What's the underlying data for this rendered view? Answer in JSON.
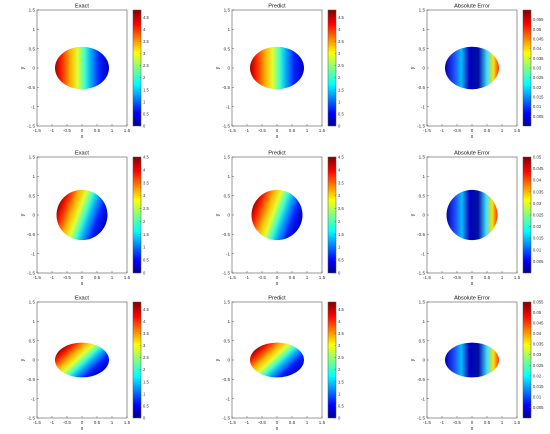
{
  "figure": {
    "colormap": "jet",
    "colors": {
      "background": "#ffffff",
      "axis": "#555555"
    }
  },
  "chart_data": [
    {
      "type": "heatmap",
      "title": "Exact",
      "shape": "ellipse",
      "semi_axes": [
        0.9,
        0.55
      ],
      "xlabel": "x",
      "ylabel": "y",
      "xlim": [
        -1.5,
        1.5
      ],
      "ylim": [
        -1.5,
        1.5
      ],
      "xticks": [
        "-1.5",
        "-1",
        "-0.5",
        "0",
        "0.5",
        "1",
        "1.5"
      ],
      "yticks": [
        "-1.5",
        "-1",
        "-0.5",
        "0",
        "0.5",
        "1",
        "1.5"
      ],
      "grid": false,
      "field": "gradient",
      "direction_angle_deg": 0,
      "clim": [
        0,
        4.8
      ],
      "colorbar_ticks": [
        "0",
        "0.5",
        "1",
        "1.5",
        "2",
        "2.5",
        "3",
        "3.5",
        "4",
        "4.5"
      ]
    },
    {
      "type": "heatmap",
      "title": "Predict",
      "shape": "ellipse",
      "semi_axes": [
        0.9,
        0.55
      ],
      "xlabel": "x",
      "ylabel": "y",
      "xlim": [
        -1.5,
        1.5
      ],
      "ylim": [
        -1.5,
        1.5
      ],
      "xticks": [
        "-1.5",
        "-1",
        "-0.5",
        "0",
        "0.5",
        "1",
        "1.5"
      ],
      "yticks": [
        "-1.5",
        "-1",
        "-0.5",
        "0",
        "0.5",
        "1",
        "1.5"
      ],
      "grid": false,
      "field": "gradient",
      "direction_angle_deg": 0,
      "clim": [
        0,
        4.8
      ],
      "colorbar_ticks": [
        "0",
        "0.5",
        "1",
        "1.5",
        "2",
        "2.5",
        "3",
        "3.5",
        "4",
        "4.5"
      ]
    },
    {
      "type": "heatmap",
      "title": "Absolute Error",
      "shape": "ellipse",
      "semi_axes": [
        0.9,
        0.55
      ],
      "xlabel": "x",
      "ylabel": "y",
      "xlim": [
        -1.5,
        1.5
      ],
      "ylim": [
        -1.5,
        1.5
      ],
      "xticks": [
        "-1.5",
        "-1",
        "-0.5",
        "0",
        "0.5",
        "1",
        "1.5"
      ],
      "yticks": [
        "-1.5",
        "-1",
        "-0.5",
        "0",
        "0.5",
        "1",
        "1.5"
      ],
      "grid": false,
      "field": "error",
      "clim": [
        0,
        0.06
      ],
      "colorbar_ticks": [
        "0.005",
        "0.01",
        "0.015",
        "0.02",
        "0.025",
        "0.03",
        "0.035",
        "0.04",
        "0.045",
        "0.05",
        "0.055"
      ]
    },
    {
      "type": "heatmap",
      "title": "Exact",
      "shape": "ellipse",
      "semi_axes": [
        0.85,
        0.65
      ],
      "xlabel": "x",
      "ylabel": "y",
      "xlim": [
        -1.5,
        1.5
      ],
      "ylim": [
        -1.5,
        1.5
      ],
      "xticks": [
        "-1.5",
        "-1",
        "-0.5",
        "0",
        "0.5",
        "1",
        "1.5"
      ],
      "yticks": [
        "-1.5",
        "-1",
        "-0.5",
        "0",
        "0.5",
        "1",
        "1.5"
      ],
      "grid": false,
      "field": "gradient",
      "direction_angle_deg": 20,
      "clim": [
        0,
        4.5
      ],
      "colorbar_ticks": [
        "0",
        "0.5",
        "1",
        "1.5",
        "2",
        "2.5",
        "3",
        "3.5",
        "4",
        "4.5"
      ]
    },
    {
      "type": "heatmap",
      "title": "Predict",
      "shape": "ellipse",
      "semi_axes": [
        0.85,
        0.65
      ],
      "xlabel": "x",
      "ylabel": "y",
      "xlim": [
        -1.5,
        1.5
      ],
      "ylim": [
        -1.5,
        1.5
      ],
      "xticks": [
        "-1.5",
        "-1",
        "-0.5",
        "0",
        "0.5",
        "1",
        "1.5"
      ],
      "yticks": [
        "-1.5",
        "-1",
        "-0.5",
        "0",
        "0.5",
        "1",
        "1.5"
      ],
      "grid": false,
      "field": "gradient",
      "direction_angle_deg": 20,
      "clim": [
        0,
        4.5
      ],
      "colorbar_ticks": [
        "0",
        "0.5",
        "1",
        "1.5",
        "2",
        "2.5",
        "3",
        "3.5",
        "4",
        "4.5"
      ]
    },
    {
      "type": "heatmap",
      "title": "Absolute Error",
      "shape": "ellipse",
      "semi_axes": [
        0.85,
        0.65
      ],
      "xlabel": "x",
      "ylabel": "y",
      "xlim": [
        -1.5,
        1.5
      ],
      "ylim": [
        -1.5,
        1.5
      ],
      "xticks": [
        "-1.5",
        "-1",
        "-0.5",
        "0",
        "0.5",
        "1",
        "1.5"
      ],
      "yticks": [
        "-1.5",
        "-1",
        "-0.5",
        "0",
        "0.5",
        "1",
        "1.5"
      ],
      "grid": false,
      "field": "error",
      "clim": [
        0,
        0.05
      ],
      "colorbar_ticks": [
        "0.005",
        "0.01",
        "0.015",
        "0.02",
        "0.025",
        "0.03",
        "0.035",
        "0.04",
        "0.045",
        "0.05"
      ]
    },
    {
      "type": "heatmap",
      "title": "Exact",
      "shape": "ellipse",
      "semi_axes": [
        0.9,
        0.45
      ],
      "xlabel": "x",
      "ylabel": "y",
      "xlim": [
        -1.5,
        1.5
      ],
      "ylim": [
        -1.5,
        1.5
      ],
      "xticks": [
        "-1.5",
        "-1",
        "-0.5",
        "0",
        "0.5",
        "1",
        "1.5"
      ],
      "yticks": [
        "-1.5",
        "-1",
        "-0.5",
        "0",
        "0.5",
        "1",
        "1.5"
      ],
      "grid": false,
      "field": "gradient",
      "direction_angle_deg": 35,
      "clim": [
        0,
        4.8
      ],
      "colorbar_ticks": [
        "0",
        "0.5",
        "1",
        "1.5",
        "2",
        "2.5",
        "3",
        "3.5",
        "4",
        "4.5"
      ]
    },
    {
      "type": "heatmap",
      "title": "Predict",
      "shape": "ellipse",
      "semi_axes": [
        0.9,
        0.45
      ],
      "xlabel": "x",
      "ylabel": "y",
      "xlim": [
        -1.5,
        1.5
      ],
      "ylim": [
        -1.5,
        1.5
      ],
      "xticks": [
        "-1.5",
        "-1",
        "-0.5",
        "0",
        "0.5",
        "1",
        "1.5"
      ],
      "yticks": [
        "-1.5",
        "-1",
        "-0.5",
        "0",
        "0.5",
        "1",
        "1.5"
      ],
      "grid": false,
      "field": "gradient",
      "direction_angle_deg": 35,
      "clim": [
        0,
        4.8
      ],
      "colorbar_ticks": [
        "0",
        "0.5",
        "1",
        "1.5",
        "2",
        "2.5",
        "3",
        "3.5",
        "4",
        "4.5"
      ]
    },
    {
      "type": "heatmap",
      "title": "Absolute Error",
      "shape": "ellipse",
      "semi_axes": [
        0.9,
        0.45
      ],
      "xlabel": "x",
      "ylabel": "y",
      "xlim": [
        -1.5,
        1.5
      ],
      "ylim": [
        -1.5,
        1.5
      ],
      "xticks": [
        "-1.5",
        "-1",
        "-0.5",
        "0",
        "0.5",
        "1",
        "1.5"
      ],
      "yticks": [
        "-1.5",
        "-1",
        "-0.5",
        "0",
        "0.5",
        "1",
        "1.5"
      ],
      "grid": false,
      "field": "error",
      "clim": [
        0,
        0.055
      ],
      "colorbar_ticks": [
        "0.005",
        "0.01",
        "0.015",
        "0.02",
        "0.025",
        "0.03",
        "0.035",
        "0.04",
        "0.045",
        "0.05",
        "0.055"
      ]
    }
  ]
}
